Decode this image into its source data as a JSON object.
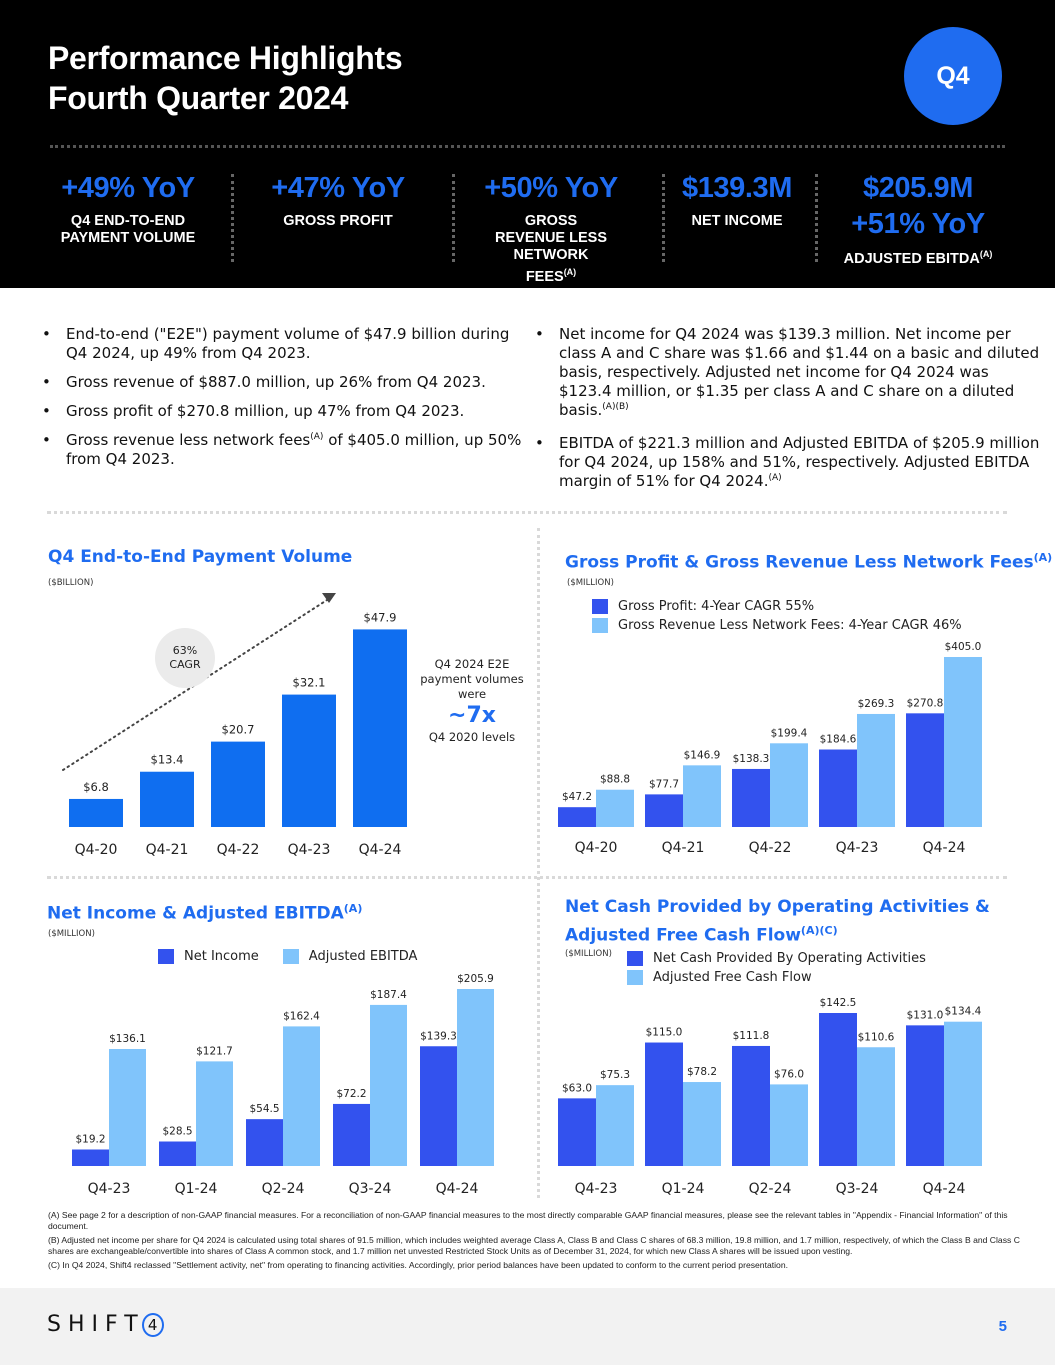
{
  "header": {
    "title_line1": "Performance Highlights",
    "title_line2": "Fourth Quarter 2024",
    "badge": "Q4",
    "kpis": [
      {
        "value": "+49% YoY",
        "label": "Q4 END-TO-END PAYMENT VOLUME",
        "sup": ""
      },
      {
        "value": "+47% YoY",
        "label": "GROSS PROFIT",
        "sup": ""
      },
      {
        "value": "+50% YoY",
        "label": "GROSS REVENUE LESS NETWORK FEES",
        "sup": "(A)"
      },
      {
        "value": "$139.3M",
        "label": "NET INCOME",
        "sup": ""
      },
      {
        "value": "$205.9M",
        "value2": "+51% YoY",
        "label": "ADJUSTED EBITDA",
        "sup": "(A)"
      }
    ]
  },
  "bullets_left": [
    {
      "text": "End-to-end (\"E2E\") payment volume of $47.9 billion during Q4 2024, up 49% from Q4 2023."
    },
    {
      "text": "Gross revenue of $887.0 million, up 26% from Q4 2023."
    },
    {
      "text": "Gross profit of $270.8 million, up 47% from Q4 2023."
    },
    {
      "text_before": "Gross revenue less network fees",
      "sup": "(A)",
      "text_after": " of $405.0 million, up 50% from Q4 2023."
    }
  ],
  "bullets_right": [
    {
      "text": "Net income for Q4 2024 was $139.3 million. Net income per class A and C share was $1.66 and $1.44 on a basic and diluted basis, respectively. Adjusted net income for Q4 2024 was $123.4 million, or $1.35 per class A and C share on a diluted basis.",
      "sup": "(A)(B)"
    },
    {
      "text": "EBITDA of $221.3 million and Adjusted EBITDA of $205.9 million for Q4 2024, up 158% and 51%, respectively. Adjusted EBITDA margin of 51% for Q4 2024.",
      "sup": "(A)"
    }
  ],
  "colors": {
    "accent": "#1f6cf0",
    "dark_series": "#3352ee",
    "light_series": "#80c4fb",
    "e2e_bar": "#0f6ef0"
  },
  "chart_data": [
    {
      "type": "bar",
      "title": "Q4 End-to-End Payment Volume",
      "unit": "($BILLION)",
      "categories": [
        "Q4-20",
        "Q4-21",
        "Q4-22",
        "Q4-23",
        "Q4-24"
      ],
      "values": [
        6.8,
        13.4,
        20.7,
        32.1,
        47.9
      ],
      "labels": [
        "$6.8",
        "$13.4",
        "$20.7",
        "$32.1",
        "$47.9"
      ],
      "annotation_cagr_line1": "63%",
      "annotation_cagr_line2": "CAGR",
      "note_line1": "Q4 2024 E2E payment volumes were",
      "note_big": "~7x",
      "note_line2": "Q4 2020 levels",
      "ylim": [
        0,
        48
      ]
    },
    {
      "type": "bar",
      "title": "Gross Profit & Gross Revenue Less Network Fees",
      "title_sup": "(A)",
      "unit": "($MILLION)",
      "categories": [
        "Q4-20",
        "Q4-21",
        "Q4-22",
        "Q4-23",
        "Q4-24"
      ],
      "series": [
        {
          "name": "Gross Profit: 4-Year CAGR 55%",
          "values": [
            47.2,
            77.7,
            138.3,
            184.6,
            270.8
          ],
          "labels": [
            "$47.2",
            "$77.7",
            "$138.3",
            "$184.6",
            "$270.8"
          ]
        },
        {
          "name": "Gross Revenue Less Network Fees: 4-Year CAGR 46%",
          "values": [
            88.8,
            146.9,
            199.4,
            269.3,
            405.0
          ],
          "labels": [
            "$88.8",
            "$146.9",
            "$199.4",
            "$269.3",
            "$405.0"
          ]
        }
      ],
      "ylim": [
        0,
        405
      ]
    },
    {
      "type": "bar",
      "title": "Net Income & Adjusted EBITDA",
      "title_sup": "(A)",
      "unit": "($MILLION)",
      "categories": [
        "Q4-23",
        "Q1-24",
        "Q2-24",
        "Q3-24",
        "Q4-24"
      ],
      "series": [
        {
          "name": "Net Income",
          "values": [
            19.2,
            28.5,
            54.5,
            72.2,
            139.3
          ],
          "labels": [
            "$19.2",
            "$28.5",
            "$54.5",
            "$72.2",
            "$139.3"
          ]
        },
        {
          "name": "Adjusted EBITDA",
          "values": [
            136.1,
            121.7,
            162.4,
            187.4,
            205.9
          ],
          "labels": [
            "$136.1",
            "$121.7",
            "$162.4",
            "$187.4",
            "$205.9"
          ]
        }
      ],
      "ylim": [
        0,
        205.9
      ]
    },
    {
      "type": "bar",
      "title": "Net Cash Provided by Operating Activities &",
      "title_line2": "Adjusted Free Cash Flow",
      "title_sup": "(A)(C)",
      "unit": "($MILLION)",
      "categories": [
        "Q4-23",
        "Q1-24",
        "Q2-24",
        "Q3-24",
        "Q4-24"
      ],
      "series": [
        {
          "name": "Net Cash Provided By Operating Activities",
          "values": [
            63.0,
            115.0,
            111.8,
            142.5,
            131.0
          ],
          "labels": [
            "$63.0",
            "$115.0",
            "$111.8",
            "$142.5",
            "$131.0"
          ]
        },
        {
          "name": "Adjusted Free Cash Flow",
          "values": [
            75.3,
            78.2,
            76.0,
            110.6,
            134.4
          ],
          "labels": [
            "$75.3",
            "$78.2",
            "$76.0",
            "$110.6",
            "$134.4"
          ]
        }
      ],
      "ylim": [
        0,
        142.5
      ]
    }
  ],
  "footnotes": [
    "(A) See page 2 for a description of non-GAAP financial measures. For a reconciliation of non-GAAP financial measures to the most directly comparable GAAP financial measures, please see the relevant tables in \"Appendix - Financial Information\" of this document.",
    "(B) Adjusted net income per share for Q4 2024 is calculated using total shares of 91.5 million, which includes weighted average Class A, Class B and Class C shares of 68.3 million, 19.8 million, and 1.7 million, respectively, of which the Class B and Class C shares are exchangeable/convertible into shares of Class A common stock, and 1.7 million net unvested Restricted Stock Units as of December 31, 2024, for which new Class A shares will be issued upon vesting.",
    "(C) In Q4 2024, Shift4 reclassed \"Settlement activity, net\" from operating to financing activities. Accordingly, prior period balances have been updated to conform to the current period presentation."
  ],
  "footer": {
    "logo_text": "SHIFT",
    "logo_digit": "4",
    "page_number": "5"
  }
}
